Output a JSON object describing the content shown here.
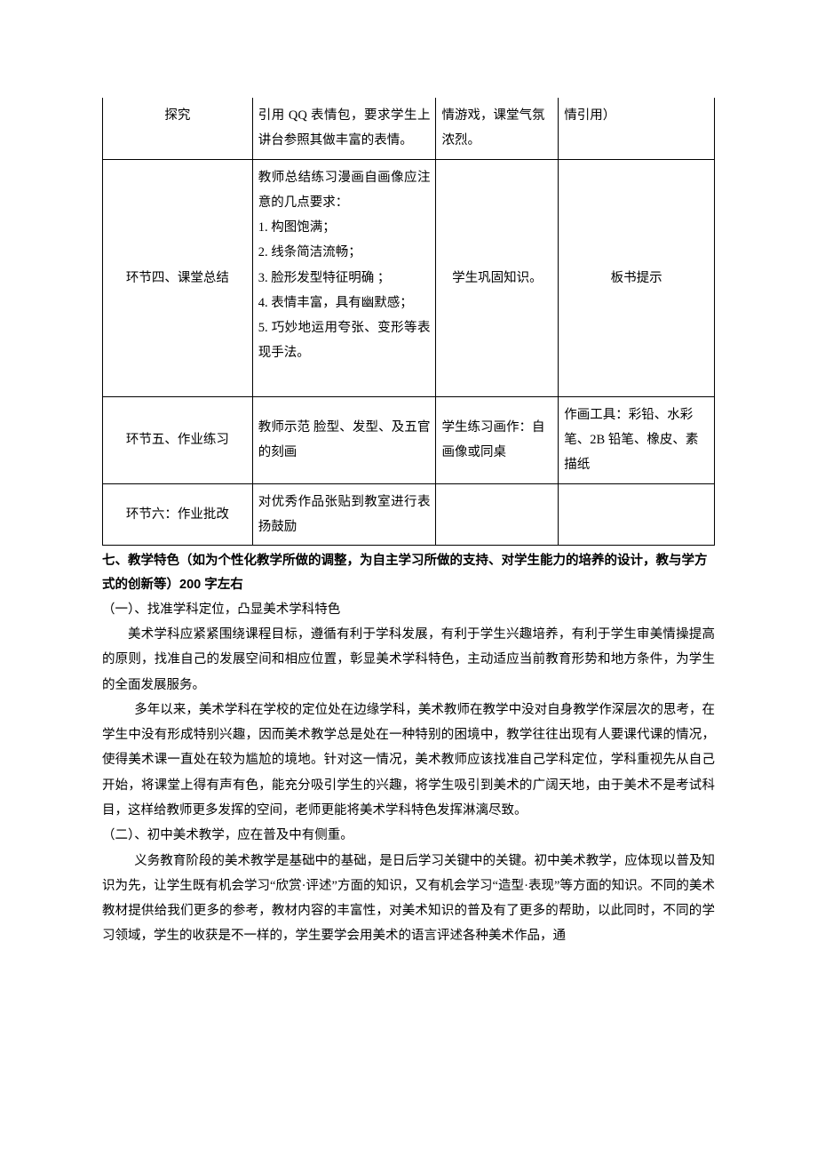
{
  "table": {
    "row1": {
      "c1": "探究",
      "c2": "引用 QQ 表情包，要求学生上讲台参照其做丰富的表情。",
      "c3": "情游戏，课堂气氛浓烈。",
      "c4": "情引用）"
    },
    "row2": {
      "c1": "环节四、课堂总结",
      "c2_intro": "教师总结练习漫画自画像应注意的几点要求：",
      "c2_1": "1. 构图饱满；",
      "c2_2": "2. 线条简洁流畅；",
      "c2_3": "3. 脸形发型特征明确 ；",
      "c2_4": "4. 表情丰富，具有幽默感；",
      "c2_5": "5. 巧妙地运用夸张、变形等表现手法。",
      "c3": "学生巩固知识。",
      "c4": "板书提示"
    },
    "row3": {
      "c1": "环节五、作业练习",
      "c2": "教师示范 脸型、发型、及五官的刻画",
      "c3": "学生练习画作：自画像或同桌",
      "c4": "作画工具：彩铅、水彩笔、2B 铅笔、橡皮、素描纸"
    },
    "row4": {
      "c1": "环节六：作业批改",
      "c2": "对优秀作品张贴到教室进行表扬鼓励",
      "c3": "",
      "c4": ""
    }
  },
  "section7": {
    "heading": "七、教学特色（如为个性化教学所做的调整，为自主学习所做的支持、对学生能力的培养的设计，教与学方式的创新等）200 字左右",
    "sub1_title": "（一）、找准学科定位，凸显美术学科特色",
    "sub1_p1": "美术学科应紧紧围绕课程目标，遵循有利于学科发展，有利于学生兴趣培养，有利于学生审美情操提高的原则，找准自己的发展空间和相应位置，彰显美术学科特色，主动适应当前教育形势和地方条件，为学生的全面发展服务。",
    "sub1_p2": "多年以来，美术学科在学校的定位处在边缘学科，美术教师在教学中没对自身教学作深层次的思考，在学生中没有形成特别兴趣，因而美术教学总是处在一种特别的困境中，教学往往出现有人要课代课的情况，使得美术课一直处在较为尴尬的境地。针对这一情况，美术教师应该找准自己学科定位，学科重视先从自己开始，将课堂上得有声有色，能充分吸引学生的兴趣，将学生吸引到美术的广阔天地，由于美术不是考试科目，这样给教师更多发挥的空间，老师更能将美术学科特色发挥淋漓尽致。",
    "sub2_title": "（二）、初中美术教学，应在普及中有侧重。",
    "sub2_p1": "义务教育阶段的美术教学是基础中的基础，是日后学习关键中的关键。初中美术教学，应体现以普及知识为先，让学生既有机会学习“欣赏·评述”方面的知识，又有机会学习“造型·表现”等方面的知识。不同的美术教材提供给我们更多的参考，教材内容的丰富性，对美术知识的普及有了更多的帮助，以此同时，不同的学习领域，学生的收获是不一样的，学生要学会用美术的语言评述各种美术作品，通"
  }
}
